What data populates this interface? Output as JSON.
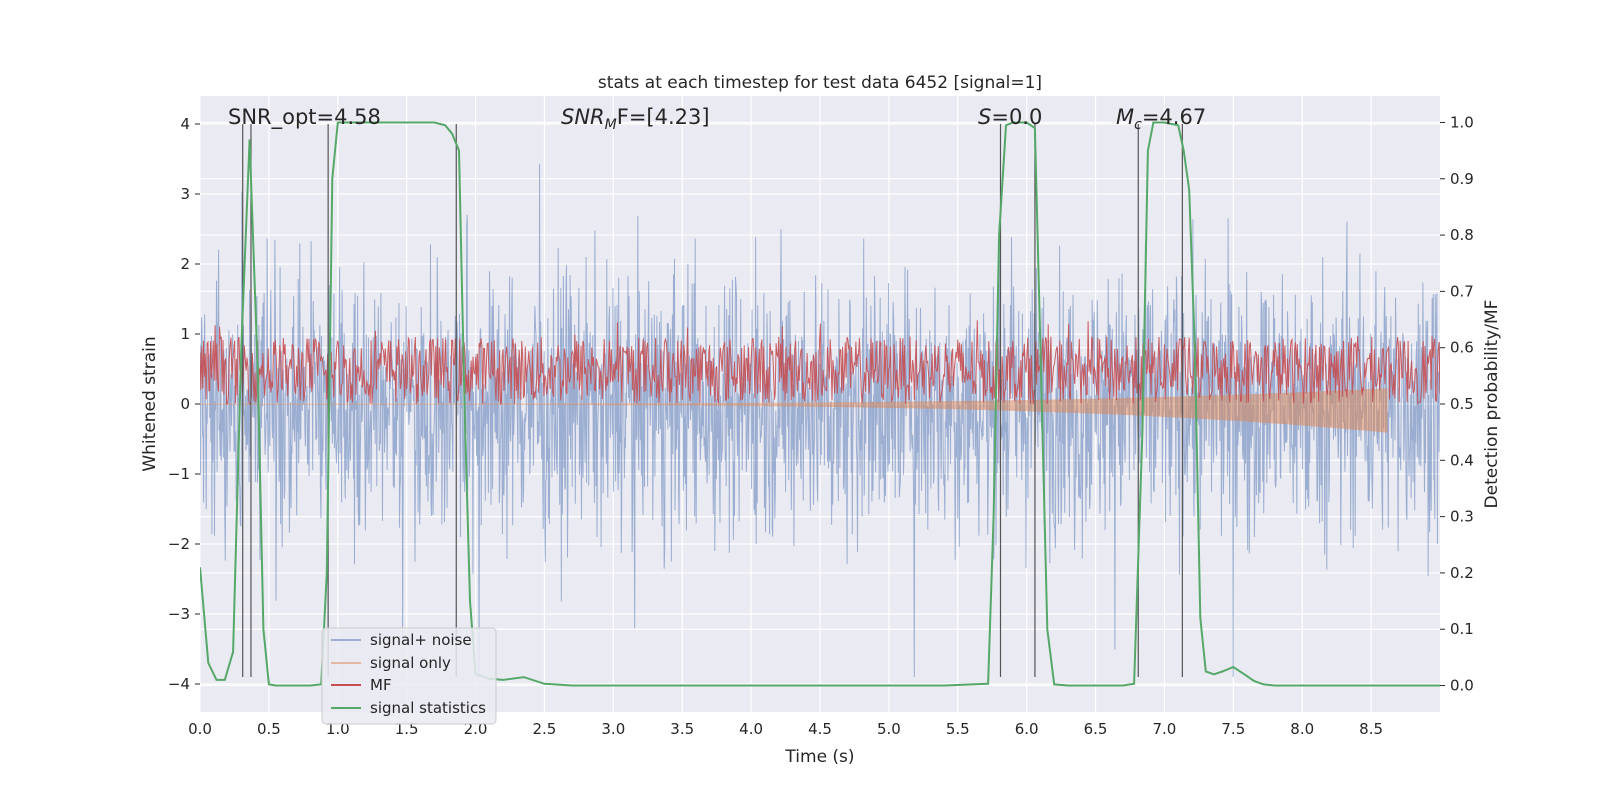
{
  "chart_data": {
    "type": "line",
    "title": "stats at each timestep for test data 6452 [signal=1]",
    "xlabel": "Time (s)",
    "ylabel": "Whitened strain",
    "y2label": "Detection probability/MF",
    "xlim": [
      0.0,
      9.0
    ],
    "ylim": [
      -4.4,
      4.4
    ],
    "y2lim": [
      -0.047,
      1.047
    ],
    "xticks": [
      "0.0",
      "0.5",
      "1.0",
      "1.5",
      "2.0",
      "2.5",
      "3.0",
      "3.5",
      "4.0",
      "4.5",
      "5.0",
      "5.5",
      "6.0",
      "6.5",
      "7.0",
      "7.5",
      "8.0",
      "8.5"
    ],
    "xtick_values": [
      0.0,
      0.5,
      1.0,
      1.5,
      2.0,
      2.5,
      3.0,
      3.5,
      4.0,
      4.5,
      5.0,
      5.5,
      6.0,
      6.5,
      7.0,
      7.5,
      8.0,
      8.5
    ],
    "yticks": [
      "−4",
      "−3",
      "−2",
      "−1",
      "0",
      "1",
      "2",
      "3",
      "4"
    ],
    "ytick_values": [
      -4,
      -3,
      -2,
      -1,
      0,
      1,
      2,
      3,
      4
    ],
    "y2ticks": [
      "0.0",
      "0.1",
      "0.2",
      "0.3",
      "0.4",
      "0.5",
      "0.6",
      "0.7",
      "0.8",
      "0.9",
      "1.0"
    ],
    "y2tick_values": [
      0.0,
      0.1,
      0.2,
      0.3,
      0.4,
      0.5,
      0.6,
      0.7,
      0.8,
      0.9,
      1.0
    ],
    "grid": true,
    "legend_position": "lower-left",
    "annotations": [
      {
        "text": "SNR_opt=4.58",
        "x": 0.2
      },
      {
        "math_base": "SNR",
        "math_sub": "M",
        "suffix": "F=[4.23]",
        "x": 2.6
      },
      {
        "math_base": "S",
        "math_sub": "",
        "suffix": "=0.0",
        "x": 5.6
      },
      {
        "math_base": "M",
        "math_sub": "c",
        "suffix": "=4.67",
        "x": 6.6
      }
    ],
    "vlines_time": [
      0.31,
      0.37,
      0.93,
      1.86,
      5.81,
      6.06,
      6.81,
      7.13
    ],
    "series": [
      {
        "name": "signal+ noise",
        "color": "#4c72b0",
        "alpha": 0.5,
        "axis": "left",
        "kind": "noise",
        "amplitude_range": [
          -3.9,
          4.0
        ]
      },
      {
        "name": "signal only",
        "color": "#dd8452",
        "alpha": 0.5,
        "axis": "left",
        "kind": "chirp",
        "end_time": 8.62,
        "min_value": -0.4
      },
      {
        "name": "MF",
        "color": "#c44e52",
        "axis": "right",
        "kind": "band",
        "range": [
          0.5,
          0.62
        ]
      },
      {
        "name": "signal statistics",
        "color": "#55a868",
        "axis": "right",
        "x": [
          0.0,
          0.06,
          0.12,
          0.18,
          0.24,
          0.3,
          0.36,
          0.42,
          0.46,
          0.5,
          0.55,
          0.6,
          0.7,
          0.8,
          0.88,
          0.92,
          0.96,
          1.0,
          1.05,
          1.2,
          1.4,
          1.6,
          1.7,
          1.78,
          1.83,
          1.88,
          1.92,
          1.96,
          2.0,
          2.1,
          2.2,
          2.35,
          2.5,
          2.7,
          2.9,
          3.2,
          3.6,
          4.0,
          4.5,
          5.0,
          5.4,
          5.72,
          5.76,
          5.8,
          5.85,
          5.9,
          6.0,
          6.06,
          6.1,
          6.15,
          6.2,
          6.3,
          6.5,
          6.7,
          6.78,
          6.84,
          6.88,
          6.92,
          7.0,
          7.1,
          7.14,
          7.18,
          7.22,
          7.26,
          7.3,
          7.36,
          7.42,
          7.5,
          7.58,
          7.65,
          7.72,
          7.8,
          8.0,
          8.5,
          9.0
        ],
        "values": [
          0.21,
          0.04,
          0.01,
          0.01,
          0.06,
          0.6,
          0.97,
          0.55,
          0.1,
          0.002,
          0.0,
          0.0,
          0.0,
          0.0,
          0.002,
          0.2,
          0.9,
          1.0,
          1.0,
          1.0,
          1.0,
          1.0,
          1.0,
          0.995,
          0.98,
          0.95,
          0.5,
          0.15,
          0.02,
          0.012,
          0.01,
          0.015,
          0.003,
          0.0,
          0.0,
          0.0,
          0.0,
          0.0,
          0.0,
          0.0,
          0.0,
          0.003,
          0.3,
          0.8,
          0.995,
          1.0,
          1.0,
          0.99,
          0.6,
          0.1,
          0.002,
          0.0,
          0.0,
          0.0,
          0.003,
          0.45,
          0.95,
          1.0,
          1.0,
          0.995,
          0.95,
          0.88,
          0.6,
          0.12,
          0.025,
          0.02,
          0.025,
          0.033,
          0.02,
          0.008,
          0.002,
          0.0,
          0.0,
          0.0,
          0.0
        ]
      }
    ]
  }
}
